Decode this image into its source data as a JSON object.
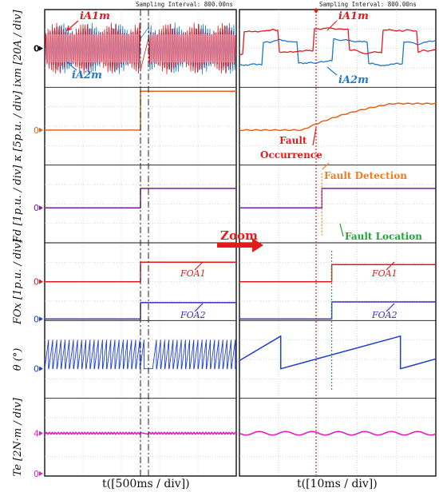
{
  "header": {
    "left_sampling": "Sampling Interval: 800.00ns",
    "right_sampling": "Sampling Interval: 800.00ns"
  },
  "x_axis": {
    "left_label": "t([500ms / div])",
    "right_label": "t([10ms / div])",
    "zoom_label": "Zoom"
  },
  "rows": [
    {
      "id": "ixm",
      "ylabel": "ixm [20A / div]",
      "zero_marker": "0",
      "zero_color": "#111111"
    },
    {
      "id": "kappa",
      "ylabel": "κ [5p.u. / div]",
      "zero_marker": "0",
      "zero_color": "#e8601a"
    },
    {
      "id": "fd",
      "ylabel": "Fd [1p.u. / div]",
      "zero_marker": "0",
      "zero_color": "#7b1fa2"
    },
    {
      "id": "fox",
      "ylabel": "FOx [1p.u. / div]",
      "zero_marker": "0",
      "zero_color": "#e41a1c"
    },
    {
      "id": "theta",
      "ylabel": "θ (°)",
      "zero_marker": "0",
      "zero_color": "#1f3fd0"
    },
    {
      "id": "te",
      "ylabel": "Te [2N·m / div]",
      "zero_marker": "4",
      "zero_color": "#e020c0"
    }
  ],
  "extra_zero_markers": [
    {
      "row": "fox",
      "text": "0",
      "color": "#1f3fd0"
    },
    {
      "row": "te",
      "text": "0",
      "color": "#e020c0"
    }
  ],
  "annotations": {
    "ia1m": "iA1m",
    "ia2m": "iA2m",
    "fault_occurrence_1": "Fault",
    "fault_occurrence_2": "Occurrence",
    "fault_detection": "Fault Detection",
    "fault_location": "Fault Location",
    "foa1": "FOA1",
    "foa2": "FOA2"
  },
  "colors": {
    "ia1m": "#e41a1c",
    "ia2m": "#1f78c8",
    "kappa": "#e8601a",
    "fd": "#7b1fa2",
    "foa1": "#e41a1c",
    "foa2": "#3b2bc8",
    "theta": "#1f3fd0",
    "te": "#e020c0",
    "fault_occurrence": "#e41a1c",
    "fault_detection": "#f07c1e",
    "fault_location": "#1fa83a"
  },
  "chart_data": [
    {
      "type": "line",
      "panel": "left",
      "xlabel": "t([500ms / div])",
      "time_per_div": "500ms",
      "series": [
        {
          "name": "iA1m",
          "signal": "current",
          "before_fault": "high-frequency ~±1 div",
          "after_fault": "high-frequency ~±1 div"
        },
        {
          "name": "iA2m",
          "signal": "current",
          "before_fault": "high-frequency ~±1 div",
          "after_fault": "high-frequency ~±1 div"
        },
        {
          "name": "κ",
          "values_div": {
            "before_fault": 0.0,
            "after_fault": 0.5
          }
        },
        {
          "name": "Fd",
          "values_div": {
            "before_fault": 0.0,
            "after_fault": 0.5
          }
        },
        {
          "name": "FOA1",
          "values_div": {
            "before_fault": 0.0,
            "after_fault": 0.5
          }
        },
        {
          "name": "FOA2",
          "values_div": {
            "before_fault": 0.0,
            "after_fault": 0.5
          }
        },
        {
          "name": "θ",
          "shape": "sawtooth",
          "range_div": [
            0,
            1
          ]
        },
        {
          "name": "Te",
          "values_div": {
            "level": 0.0
          }
        }
      ]
    },
    {
      "type": "line",
      "panel": "right",
      "xlabel": "t([10ms / div])",
      "time_per_div": "10ms",
      "events": [
        {
          "label": "Fault Occurrence",
          "x_div": 1.95
        },
        {
          "label": "Fault Detection",
          "x_div": 2.1
        },
        {
          "label": "Fault Location",
          "x_div": 2.35
        }
      ],
      "series": [
        {
          "name": "κ",
          "x_div": [
            0,
            1.6,
            1.95,
            2.5,
            3.0,
            3.5,
            4.0,
            4.5,
            5.0
          ],
          "y_div": [
            0,
            0,
            0.05,
            0.2,
            0.33,
            0.44,
            0.52,
            0.58,
            0.62
          ]
        },
        {
          "name": "Fd",
          "x_div": [
            0,
            2.1,
            2.1,
            5.0
          ],
          "y_div": [
            0,
            0,
            0.52,
            0.52
          ]
        },
        {
          "name": "FOA1",
          "x_div": [
            0,
            2.35,
            2.35,
            5.0
          ],
          "y_div": [
            0,
            0,
            0.52,
            0.52
          ]
        },
        {
          "name": "FOA2",
          "x_div": [
            0,
            2.35,
            2.35,
            5.0
          ],
          "y_div": [
            0,
            0,
            0.52,
            0.52
          ]
        },
        {
          "name": "θ",
          "x_div": [
            0,
            1.05,
            1.05,
            4.1,
            4.1,
            5.0
          ],
          "y_div": [
            0.25,
            1.0,
            0.0,
            1.0,
            0.0,
            0.3
          ]
        },
        {
          "name": "Te",
          "x_div": [
            0,
            5.0
          ],
          "y_div": [
            0,
            0
          ]
        }
      ]
    }
  ]
}
